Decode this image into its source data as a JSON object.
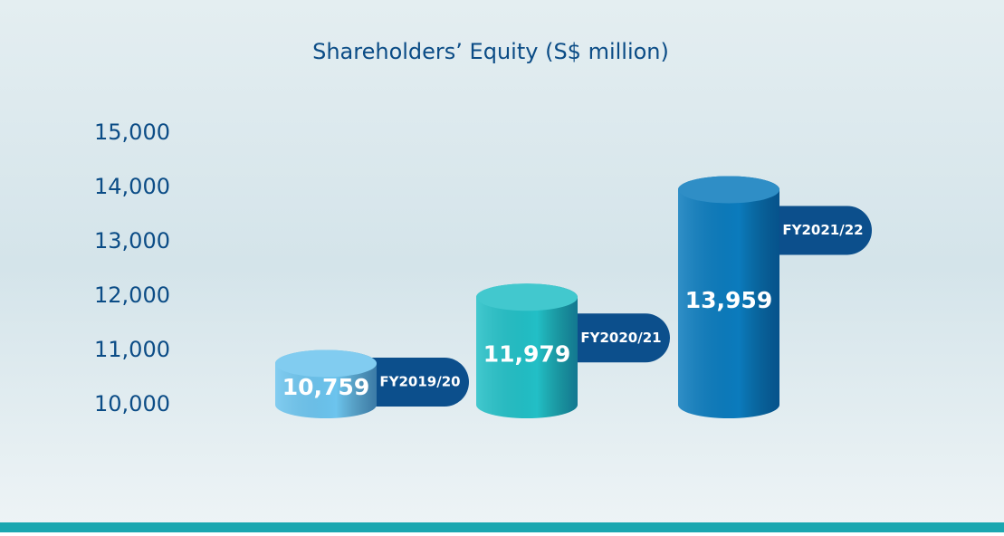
{
  "chart_data": {
    "type": "bar",
    "title": "Shareholders’ Equity (S$ million)",
    "categories": [
      "FY2019/20",
      "FY2020/21",
      "FY2021/22"
    ],
    "values": [
      10759,
      11979,
      13959
    ],
    "value_labels": [
      "10,759",
      "11,979",
      "13,959"
    ],
    "colors": [
      "#6cc4ee",
      "#22bfc6",
      "#0b7bbd"
    ],
    "ylim": [
      10000,
      15000
    ],
    "yticks": [
      {
        "value": 10000,
        "label": "10,000"
      },
      {
        "value": 11000,
        "label": "11,000"
      },
      {
        "value": 12000,
        "label": "12,000"
      },
      {
        "value": 13000,
        "label": "13,000"
      },
      {
        "value": 14000,
        "label": "14,000"
      },
      {
        "value": 15000,
        "label": "15,000"
      }
    ]
  }
}
